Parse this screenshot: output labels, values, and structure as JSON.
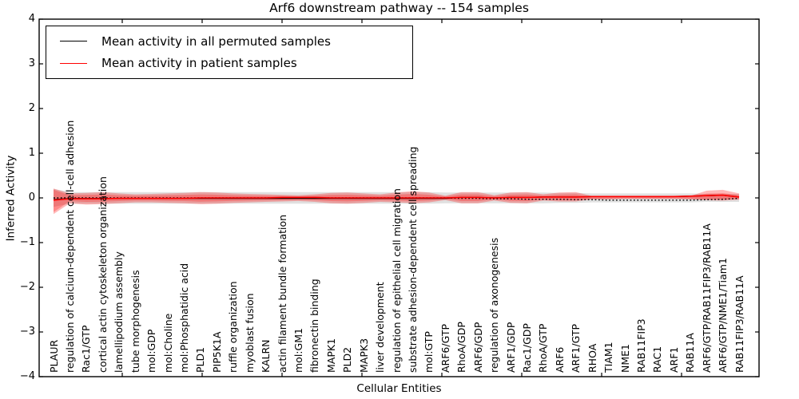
{
  "title": "Arf6 downstream pathway -- 154 samples",
  "axes": {
    "ylabel": "Inferred Activity",
    "xlabel": "Cellular Entities",
    "yticks": [
      "4",
      "3",
      "2",
      "1",
      "0",
      "−1",
      "−2",
      "−3",
      "−4"
    ],
    "ylim": [
      -4,
      4
    ]
  },
  "legend": {
    "items": [
      {
        "label": "Mean activity in all permuted samples",
        "color": "#000000"
      },
      {
        "label": "Mean activity in patient samples",
        "color": "#ff0000"
      }
    ]
  },
  "chart_data": {
    "type": "line",
    "title": "Arf6 downstream pathway -- 154 samples",
    "xlabel": "Cellular Entities",
    "ylabel": "Inferred Activity",
    "ylim": [
      -4,
      4
    ],
    "grid": false,
    "legend_position": "upper left",
    "categories": [
      "PLAUR",
      "regulation of calcium-dependent cell-cell adhesion",
      "Rac1/GTP",
      "cortical actin cytoskeleton organization",
      "lamellipodium assembly",
      "tube morphogenesis",
      "mol:GDP",
      "mol:Choline",
      "mol:Phosphatidic acid",
      "PLD1",
      "PIP5K1A",
      "ruffle organization",
      "myoblast fusion",
      "KALRN",
      "actin filament bundle formation",
      "mol:GM1",
      "fibronectin binding",
      "MAPK1",
      "PLD2",
      "MAPK3",
      "liver development",
      "regulation of epithelial cell migration",
      "substrate adhesion-dependent cell spreading",
      "mol:GTP",
      "ARF6/GTP",
      "RhoA/GDP",
      "ARF6/GDP",
      "regulation of axonogenesis",
      "ARF1/GDP",
      "Rac1/GDP",
      "RhoA/GTP",
      "ARF6",
      "ARF1/GTP",
      "RHOA",
      "TIAM1",
      "NME1",
      "RAB11FIP3",
      "RAC1",
      "ARF1",
      "RAB11A",
      "ARF6/GTP/RAB11FIP3/RAB11A",
      "ARF6/GTP/NME1/Tiam1",
      "RAB11FIP3/RAB11A"
    ],
    "series": [
      {
        "name": "Mean activity in all permuted samples",
        "values": [
          -0.04,
          -0.01,
          -0.01,
          -0.01,
          -0.01,
          -0.01,
          -0.01,
          -0.01,
          -0.01,
          -0.01,
          -0.01,
          -0.01,
          -0.01,
          -0.01,
          -0.01,
          -0.01,
          -0.01,
          -0.01,
          -0.01,
          -0.01,
          -0.01,
          -0.01,
          -0.01,
          -0.01,
          -0.01,
          0.01,
          0.01,
          0,
          0.01,
          0.01,
          0.02,
          0.02,
          0.02,
          0.03,
          0.03,
          0.03,
          0.03,
          0.03,
          0.03,
          0.04,
          0.05,
          0.06,
          0.02
        ]
      },
      {
        "name": "Mean activity in patient samples",
        "values": [
          -0.05,
          -0.02,
          -0.02,
          -0.02,
          -0.01,
          -0.01,
          -0.01,
          -0.01,
          -0.01,
          0,
          0,
          0,
          0,
          0,
          0.01,
          0.01,
          0.01,
          0,
          0,
          0,
          0,
          0,
          0,
          0,
          0,
          0.01,
          0.01,
          0,
          0.01,
          0.01,
          0.02,
          0.02,
          0.02,
          0.03,
          0.03,
          0.03,
          0.03,
          0.03,
          0.03,
          0.04,
          0.05,
          0.06,
          0.02
        ]
      },
      {
        "name": "patient_band_upper",
        "values": [
          0.21,
          0.1,
          0.11,
          0.13,
          0.1,
          0.08,
          0.09,
          0.1,
          0.11,
          0.13,
          0.12,
          0.1,
          0.09,
          0.08,
          0.07,
          0.06,
          0.08,
          0.11,
          0.12,
          0.1,
          0.08,
          0.12,
          0.15,
          0.12,
          0.05,
          0.13,
          0.13,
          0.06,
          0.12,
          0.13,
          0.08,
          0.12,
          0.13,
          0.04,
          0.03,
          0.03,
          0.03,
          0.03,
          0.03,
          0.04,
          0.16,
          0.18,
          0.1
        ]
      },
      {
        "name": "patient_band_lower",
        "values": [
          -0.36,
          -0.12,
          -0.15,
          -0.14,
          -0.12,
          -0.1,
          -0.1,
          -0.11,
          -0.12,
          -0.14,
          -0.13,
          -0.11,
          -0.1,
          -0.09,
          -0.08,
          -0.07,
          -0.09,
          -0.12,
          -0.13,
          -0.11,
          -0.09,
          -0.1,
          -0.12,
          -0.1,
          -0.05,
          -0.12,
          -0.12,
          -0.06,
          -0.11,
          -0.12,
          -0.06,
          -0.08,
          -0.08,
          -0.03,
          -0.03,
          -0.02,
          -0.02,
          -0.02,
          -0.02,
          -0.03,
          -0.05,
          -0.06,
          -0.04
        ]
      },
      {
        "name": "permuted_band_upper",
        "values": [
          0.2,
          0.13,
          0.13,
          0.13,
          0.13,
          0.13,
          0.13,
          0.13,
          0.13,
          0.13,
          0.13,
          0.13,
          0.13,
          0.13,
          0.13,
          0.13,
          0.13,
          0.13,
          0.13,
          0.13,
          0.13,
          0.13,
          0.13,
          0.13,
          0.12,
          0.12,
          0.12,
          0.12,
          0.12,
          0.12,
          0.12,
          0.11,
          0.11,
          0.1,
          0.1,
          0.1,
          0.1,
          0.1,
          0.1,
          0.1,
          0.09,
          0.09,
          0.09
        ]
      },
      {
        "name": "permuted_band_lower",
        "values": [
          -0.2,
          -0.13,
          -0.13,
          -0.13,
          -0.13,
          -0.13,
          -0.13,
          -0.13,
          -0.13,
          -0.13,
          -0.13,
          -0.13,
          -0.13,
          -0.13,
          -0.13,
          -0.13,
          -0.13,
          -0.13,
          -0.13,
          -0.13,
          -0.13,
          -0.13,
          -0.13,
          -0.13,
          -0.12,
          -0.12,
          -0.12,
          -0.12,
          -0.12,
          -0.12,
          -0.12,
          -0.11,
          -0.11,
          -0.1,
          -0.1,
          -0.1,
          -0.1,
          -0.1,
          -0.1,
          -0.1,
          -0.09,
          -0.09,
          -0.09
        ]
      },
      {
        "name": "baseline_dotted",
        "values": [
          0,
          0,
          0,
          0,
          0,
          0,
          0,
          0,
          0,
          0,
          0,
          0,
          0,
          0,
          0,
          0,
          0,
          0,
          0,
          0,
          0,
          0,
          0,
          0,
          0,
          -0.01,
          -0.01,
          -0.02,
          -0.02,
          -0.03,
          -0.03,
          -0.03,
          -0.04,
          -0.04,
          -0.05,
          -0.05,
          -0.05,
          -0.05,
          -0.05,
          -0.05,
          -0.04,
          -0.03,
          -0.01
        ]
      }
    ],
    "colors": {
      "permuted_line": "#000000",
      "patient_line": "#ff0000",
      "patient_band": "rgba(255,0,0,0.28)",
      "patient_band_inner": "rgba(255,0,0,0.25)",
      "permuted_band": "rgba(0,0,0,0.12)"
    }
  }
}
